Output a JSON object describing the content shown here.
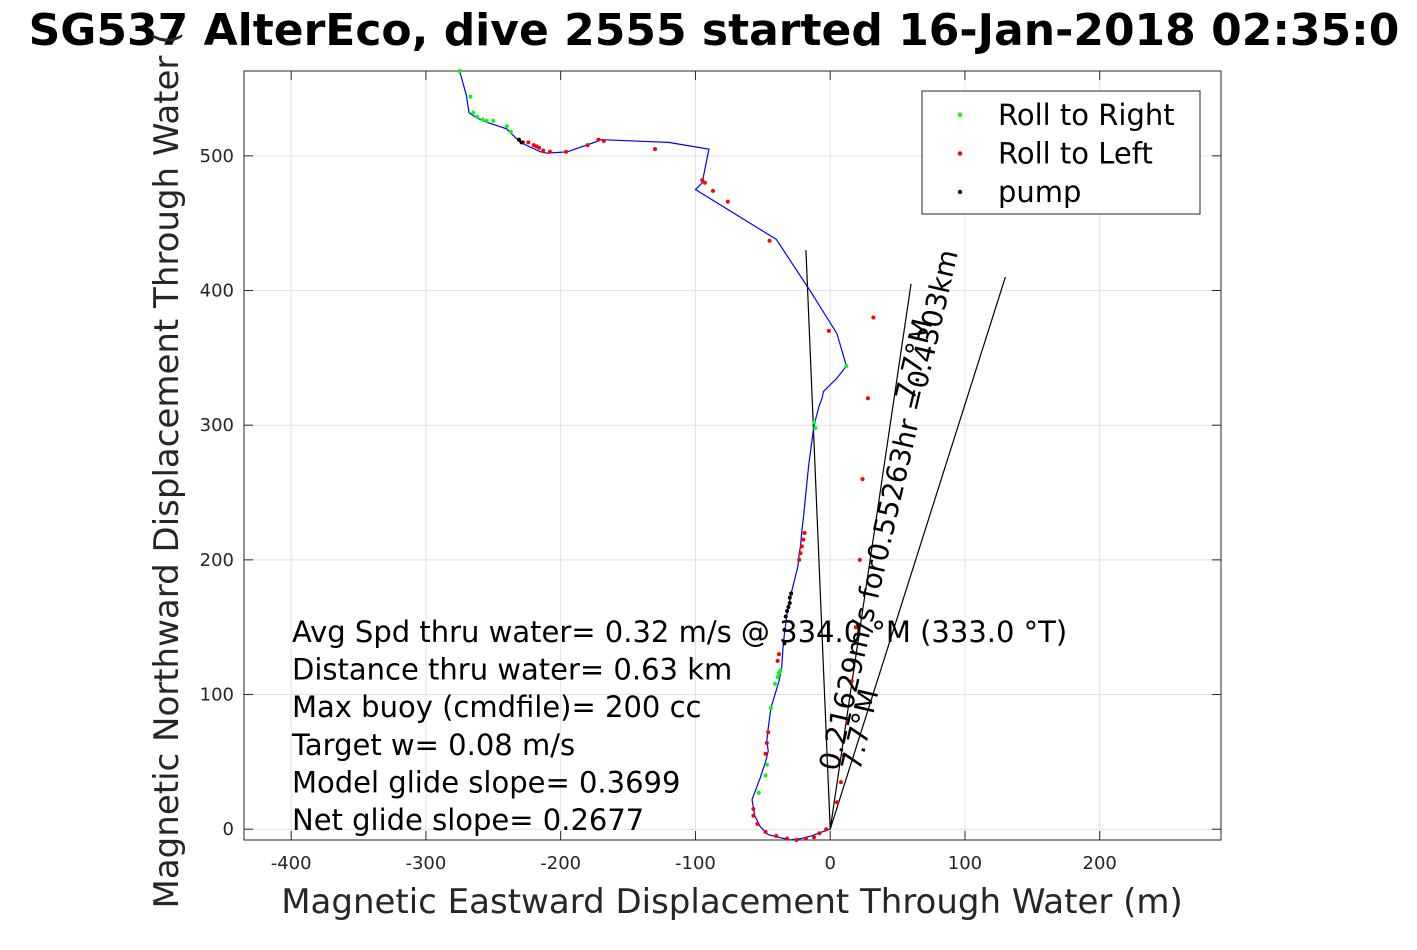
{
  "chart_data": {
    "type": "line",
    "title": "SG537 AlterEco, dive 2555 started 16-Jan-2018 02:35:0",
    "xlabel": "Magnetic Eastward Displacement Through Water (m)",
    "ylabel": "Magnetic Northward Displacement Through Water (",
    "xlim": [
      -435,
      290
    ],
    "ylim": [
      -8,
      563
    ],
    "xticks": [
      "-400",
      "-300",
      "-200",
      "-100",
      "0",
      "100",
      "200"
    ],
    "xtick_values": [
      -400,
      -300,
      -200,
      -100,
      0,
      100,
      200
    ],
    "yticks": [
      "0",
      "100",
      "200",
      "300",
      "400",
      "500"
    ],
    "ytick_values": [
      0,
      100,
      200,
      300,
      400,
      500
    ],
    "grid": true,
    "legend_placement": "top-right",
    "legend": [
      {
        "label": "Roll to Right",
        "color": "#00ff00"
      },
      {
        "label": "Roll to Left",
        "color": "#ff0000"
      },
      {
        "label": "pump",
        "color": "#000000"
      }
    ],
    "track_color": "#0000ff",
    "track": {
      "x": [
        0,
        -6,
        -14,
        -22,
        -30,
        -38,
        -46,
        -52,
        -56,
        -58,
        -52,
        -48,
        -46,
        -47,
        -46,
        -44,
        -38,
        -36,
        -35,
        -34,
        -32,
        -29,
        -24,
        -23,
        -22,
        -21,
        -20,
        -16,
        -12,
        -8,
        -6,
        -5,
        5,
        12,
        5,
        -15,
        -40,
        -100,
        -95,
        -90,
        -120,
        -170,
        -175,
        -195,
        -210,
        -215,
        -230,
        -240,
        -255,
        -262,
        -268,
        -270,
        -275
      ],
      "y": [
        0,
        -2,
        -5,
        -7,
        -8,
        -6,
        -4,
        2,
        10,
        22,
        38,
        50,
        58,
        66,
        75,
        90,
        110,
        120,
        135,
        145,
        160,
        175,
        195,
        205,
        210,
        222,
        230,
        270,
        300,
        315,
        320,
        325,
        335,
        344,
        368,
        400,
        438,
        475,
        480,
        505,
        510,
        512,
        510,
        503,
        502,
        503,
        510,
        520,
        525,
        528,
        532,
        545,
        563
      ]
    },
    "roll_right": {
      "x": [
        -53,
        -48,
        -47,
        -44,
        -41,
        -39,
        -38,
        -37,
        12,
        -12,
        -11,
        -265,
        -262,
        -258,
        -255,
        -250,
        -240,
        -237,
        -275,
        -267
      ],
      "y": [
        27,
        40,
        48,
        90,
        108,
        113,
        116,
        118,
        344,
        302,
        298,
        532,
        529,
        527,
        526,
        526,
        522,
        518,
        563,
        544
      ],
      "color": "#00ff00"
    },
    "roll_left": {
      "x": [
        -3,
        -8,
        -12,
        -18,
        -25,
        -32,
        -40,
        -48,
        -54,
        -57,
        -57,
        -48,
        -47,
        -46,
        -23,
        -22,
        -21,
        -20,
        -19,
        -39,
        -38,
        5,
        8,
        10,
        13,
        16,
        19,
        22,
        24,
        28,
        32,
        -1,
        -45,
        -76,
        -87,
        -93,
        -95,
        -130,
        -168,
        -172,
        -180,
        -196,
        -208,
        -213,
        -216,
        -218,
        -220,
        -224,
        -228
      ],
      "y": [
        0,
        -3,
        -6,
        -7,
        -8,
        -7,
        -5,
        -2,
        4,
        10,
        15,
        56,
        64,
        72,
        200,
        205,
        210,
        215,
        220,
        125,
        130,
        20,
        35,
        55,
        80,
        110,
        150,
        200,
        260,
        320,
        380,
        370,
        437,
        466,
        474,
        480,
        482,
        505,
        511,
        512,
        508,
        503,
        503,
        504,
        506,
        507,
        508,
        510,
        510
      ]
    },
    "pump": {
      "x": [
        -34,
        -34,
        -33,
        -32,
        -31,
        -30,
        -30,
        -29,
        -231,
        -229
      ],
      "y": [
        138,
        148,
        158,
        162,
        165,
        168,
        172,
        175,
        512,
        510
      ],
      "color": "#000000"
    },
    "lines": [
      {
        "name": "current-line",
        "x": [
          -18,
          0
        ],
        "y": [
          430,
          0
        ]
      },
      {
        "name": "heading-line-a",
        "x": [
          0,
          130
        ],
        "y": [
          0,
          410
        ]
      },
      {
        "name": "heading-line-b",
        "x": [
          0,
          60
        ],
        "y": [
          0,
          405
        ]
      }
    ],
    "annotations": [
      "Avg Spd thru water=  0.32 m/s @ 334.0 °M (333.0 °T)",
      "Distance thru water=  0.63 km",
      "Max buoy (cmdfile)= 200 cc",
      "Target w= 0.08 m/s",
      "Model glide slope= 0.3699",
      "Net glide slope= 0.2677"
    ],
    "rotated_labels": [
      "0.21629m/s for0.55263hr =0.4303km",
      "7.7°M",
      "7.7°M"
    ]
  }
}
